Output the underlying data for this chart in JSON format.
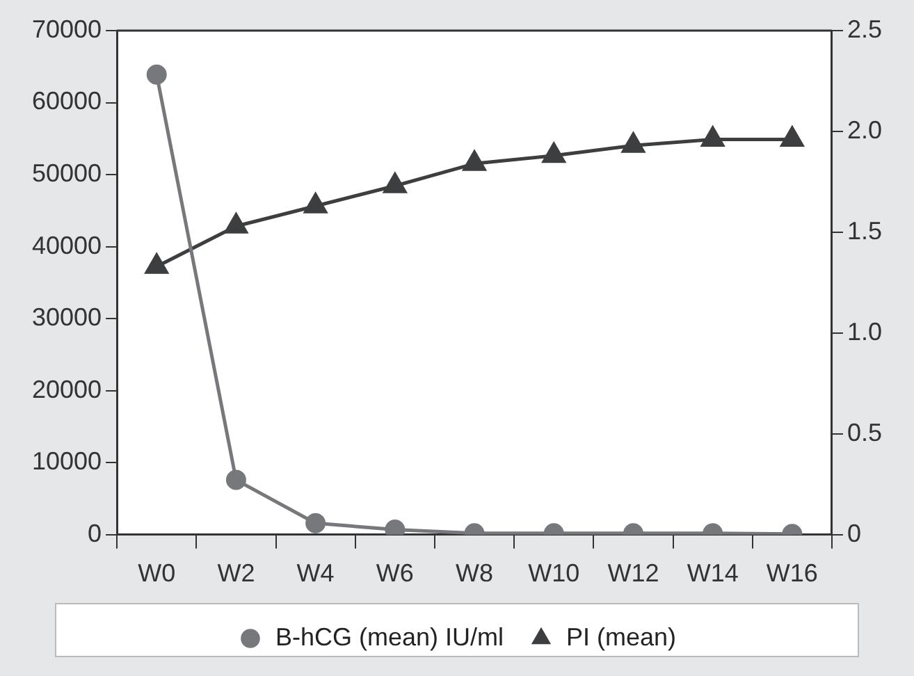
{
  "chart_data": {
    "type": "line",
    "categories": [
      "W0",
      "W2",
      "W4",
      "W6",
      "W8",
      "W10",
      "W12",
      "W14",
      "W16"
    ],
    "series": [
      {
        "name": "B-hCG (mean) IU/ml",
        "color": "#77787b",
        "marker": "circle",
        "values": [
          63900,
          7600,
          1600,
          700,
          200,
          200,
          200,
          200,
          100
        ]
      },
      {
        "name": "PI (mean)",
        "color": "#3d3e40",
        "marker": "triangle",
        "axis": "y2",
        "values": [
          1.33,
          1.53,
          1.63,
          1.73,
          1.84,
          1.88,
          1.93,
          1.96,
          1.96
        ]
      }
    ],
    "ylim": [
      0,
      70000
    ],
    "yticks": [
      0,
      10000,
      20000,
      30000,
      40000,
      50000,
      60000,
      70000
    ],
    "y2lim": [
      0,
      2.5
    ],
    "y2ticks": [
      {
        "value": 0,
        "label": "0"
      },
      {
        "value": 0.5,
        "label": "0.5"
      },
      {
        "value": 1,
        "label": "1.0"
      },
      {
        "value": 1.5,
        "label": "1.5"
      },
      {
        "value": 2,
        "label": "2.0"
      },
      {
        "value": 2.5,
        "label": "2.5"
      }
    ],
    "grid": false,
    "legend": "bottom"
  }
}
